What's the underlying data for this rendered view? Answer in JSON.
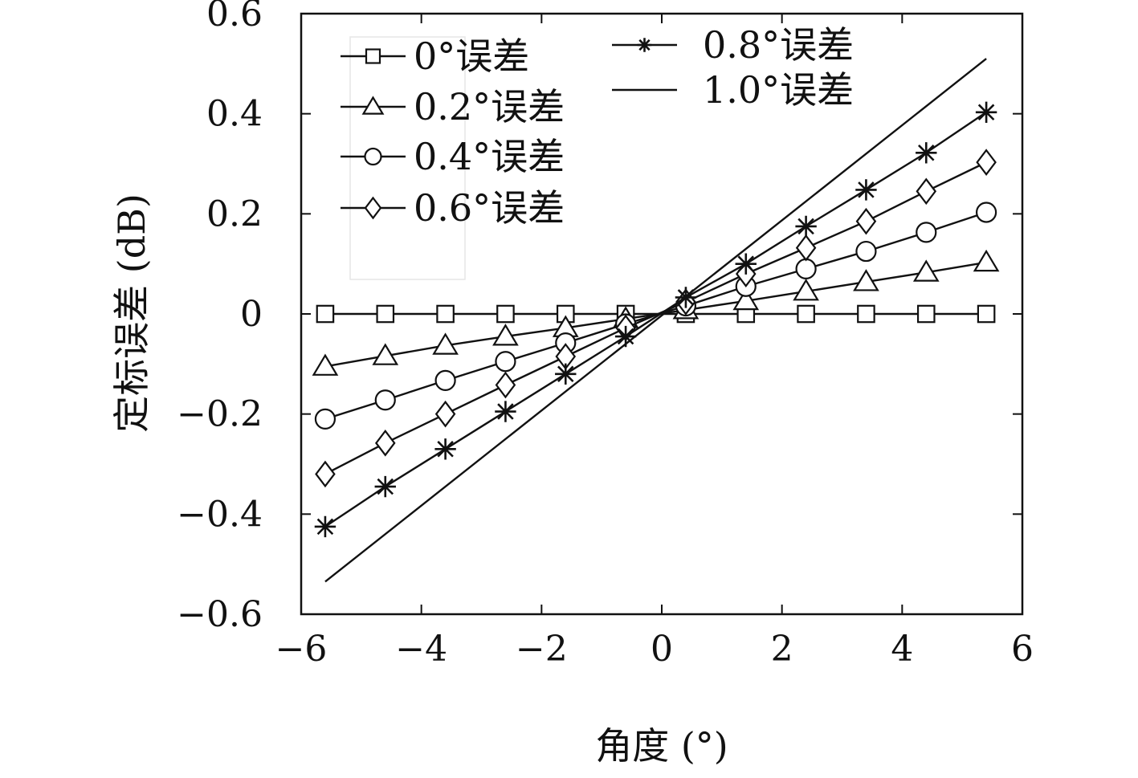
{
  "chart_data": {
    "type": "line",
    "title": "",
    "xlabel": "角度 (°)",
    "ylabel": "定标误差 (dB)",
    "xlim": [
      -6,
      6
    ],
    "ylim": [
      -0.6,
      0.6
    ],
    "xticks": [
      -6,
      -4,
      -2,
      0,
      2,
      4,
      6
    ],
    "xtick_labels": [
      "−6",
      "−4",
      "−2",
      "0",
      "2",
      "4",
      "6"
    ],
    "yticks": [
      0.6,
      0.4,
      0.2,
      0,
      -0.2,
      -0.4,
      -0.6
    ],
    "ytick_labels": [
      "0.6",
      "0.4",
      "0.2",
      "0",
      "−0.2",
      "−0.4",
      "−0.6"
    ],
    "grid": false,
    "legend_position": "top-left",
    "series": [
      {
        "name": "0°误差",
        "marker": "square",
        "x": [
          -5.6,
          -4.6,
          -3.6,
          -2.6,
          -1.6,
          -0.6,
          0.4,
          1.4,
          2.4,
          3.4,
          4.4,
          5.4
        ],
        "y": [
          0,
          0,
          0,
          0,
          0,
          0,
          0,
          0,
          0,
          0,
          0,
          0
        ]
      },
      {
        "name": "0.2°误差",
        "marker": "triangle",
        "x": [
          -5.6,
          -4.6,
          -3.6,
          -2.6,
          -1.6,
          -0.6,
          0.4,
          1.4,
          2.4,
          3.4,
          4.4,
          5.4
        ],
        "y": [
          -0.105,
          -0.084,
          -0.063,
          -0.045,
          -0.028,
          -0.01,
          0.008,
          0.026,
          0.045,
          0.064,
          0.083,
          0.103
        ]
      },
      {
        "name": "0.4°误差",
        "marker": "circle",
        "x": [
          -5.6,
          -4.6,
          -3.6,
          -2.6,
          -1.6,
          -0.6,
          0.4,
          1.4,
          2.4,
          3.4,
          4.4,
          5.4
        ],
        "y": [
          -0.21,
          -0.172,
          -0.133,
          -0.095,
          -0.058,
          -0.02,
          0.016,
          0.055,
          0.09,
          0.125,
          0.163,
          0.203
        ]
      },
      {
        "name": "0.6°误差",
        "marker": "diamond",
        "x": [
          -5.6,
          -4.6,
          -3.6,
          -2.6,
          -1.6,
          -0.6,
          0.4,
          1.4,
          2.4,
          3.4,
          4.4,
          5.4
        ],
        "y": [
          -0.32,
          -0.258,
          -0.2,
          -0.142,
          -0.085,
          -0.028,
          0.024,
          0.08,
          0.132,
          0.185,
          0.245,
          0.303
        ]
      },
      {
        "name": "0.8°误差",
        "marker": "star",
        "x": [
          -5.6,
          -4.6,
          -3.6,
          -2.6,
          -1.6,
          -0.6,
          0.4,
          1.4,
          2.4,
          3.4,
          4.4,
          5.4
        ],
        "y": [
          -0.425,
          -0.345,
          -0.27,
          -0.195,
          -0.12,
          -0.045,
          0.033,
          0.1,
          0.175,
          0.248,
          0.322,
          0.403
        ]
      },
      {
        "name": "1.0°误差",
        "marker": "none",
        "x": [
          -5.6,
          5.4
        ],
        "y": [
          -0.535,
          0.51
        ]
      }
    ]
  }
}
